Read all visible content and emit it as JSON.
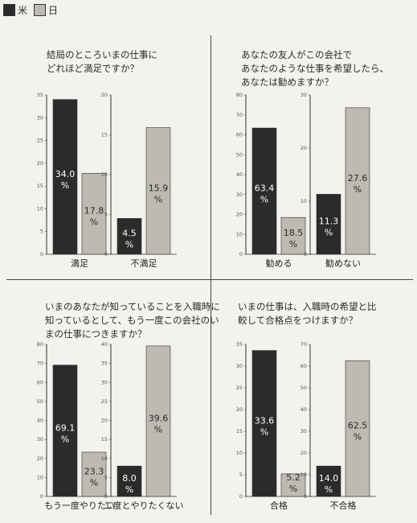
{
  "legend": [
    {
      "label": "米",
      "color": "#2b2b2b"
    },
    {
      "label": "日",
      "color": "#bdbab2"
    }
  ],
  "colors": {
    "us": "#2b2b2b",
    "jp": "#bdbab2",
    "axis": "#333333"
  },
  "chart_data": [
    {
      "type": "bar",
      "title": "結局のところいまの仕事に\nどれほど満足ですか？",
      "subplots": [
        {
          "category": "満足",
          "ylim": [
            0,
            35
          ],
          "ticks": [
            0,
            5,
            10,
            15,
            20,
            25,
            30,
            35
          ],
          "series": [
            {
              "name": "米",
              "value": 34.0,
              "label": "34.0\n%"
            },
            {
              "name": "日",
              "value": 17.8,
              "label": "17.8\n%"
            }
          ]
        },
        {
          "category": "不満足",
          "ylim": [
            0,
            20
          ],
          "ticks": [
            0,
            5,
            10,
            15,
            20
          ],
          "series": [
            {
              "name": "米",
              "value": 4.5,
              "label": "4.5\n%"
            },
            {
              "name": "日",
              "value": 15.9,
              "label": "15.9\n%"
            }
          ]
        }
      ]
    },
    {
      "type": "bar",
      "title": "あなたの友人がこの会社で\nあなたのような仕事を希望したら、\nあなたは勧めますか？",
      "subplots": [
        {
          "category": "勧める",
          "ylim": [
            0,
            80
          ],
          "ticks": [
            0,
            10,
            20,
            30,
            40,
            50,
            60,
            70,
            80
          ],
          "series": [
            {
              "name": "米",
              "value": 63.4,
              "label": "63.4\n%"
            },
            {
              "name": "日",
              "value": 18.5,
              "label": "18.5\n%"
            }
          ]
        },
        {
          "category": "勧めない",
          "ylim": [
            0,
            30
          ],
          "ticks": [
            0,
            10,
            20,
            30
          ],
          "series": [
            {
              "name": "米",
              "value": 11.3,
              "label": "11.3\n%"
            },
            {
              "name": "日",
              "value": 27.6,
              "label": "27.6\n%"
            }
          ]
        }
      ]
    },
    {
      "type": "bar",
      "title": "いまのあなたが知っていることを入職時に\n知っているとして、もう一度この会社のい\nまの仕事につきますか？",
      "subplots": [
        {
          "category": "もう一度やりたい",
          "ylim": [
            0,
            80
          ],
          "ticks": [
            0,
            10,
            20,
            30,
            40,
            50,
            60,
            70,
            80
          ],
          "series": [
            {
              "name": "米",
              "value": 69.1,
              "label": "69.1\n%"
            },
            {
              "name": "日",
              "value": 23.3,
              "label": "23.3\n%"
            }
          ]
        },
        {
          "category": "二度とやりたくない",
          "ylim": [
            0,
            40
          ],
          "ticks": [
            0,
            5,
            10,
            15,
            20,
            25,
            30,
            35,
            40
          ],
          "series": [
            {
              "name": "米",
              "value": 8.0,
              "label": "8.0\n%"
            },
            {
              "name": "日",
              "value": 39.6,
              "label": "39.6\n%"
            }
          ]
        }
      ]
    },
    {
      "type": "bar",
      "title": "いまの仕事は、入職時の希望と比\n較して合格点をつけますか？",
      "subplots": [
        {
          "category": "合格",
          "ylim": [
            0,
            35
          ],
          "ticks": [
            0,
            5,
            10,
            15,
            20,
            25,
            30,
            35
          ],
          "series": [
            {
              "name": "米",
              "value": 33.6,
              "label": "33.6\n%"
            },
            {
              "name": "日",
              "value": 5.2,
              "label": "5.2\n%"
            }
          ]
        },
        {
          "category": "不合格",
          "ylim": [
            0,
            70
          ],
          "ticks": [
            0,
            10,
            20,
            30,
            40,
            50,
            60,
            70
          ],
          "series": [
            {
              "name": "米",
              "value": 14.0,
              "label": "14.0\n%"
            },
            {
              "name": "日",
              "value": 62.5,
              "label": "62.5\n%"
            }
          ]
        }
      ]
    }
  ]
}
